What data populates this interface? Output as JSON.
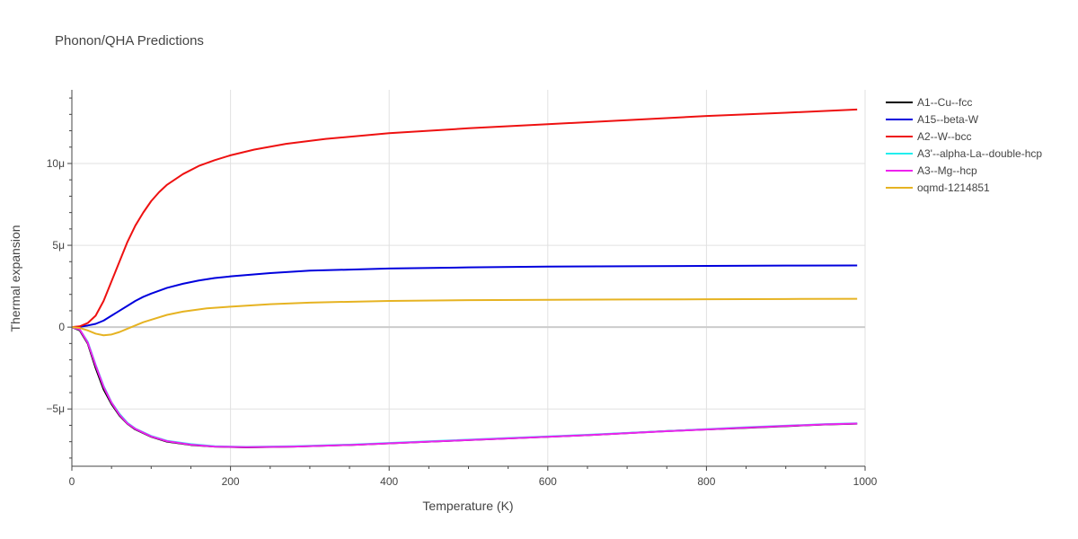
{
  "chart_data": {
    "type": "line",
    "title": "Phonon/QHA Predictions",
    "xlabel": "Temperature (K)",
    "ylabel": "Thermal expansion",
    "xlim": [
      0,
      1000
    ],
    "ylim": [
      -8.5e-06,
      1.45e-05
    ],
    "x_ticks": [
      0,
      200,
      400,
      600,
      800,
      1000
    ],
    "x_tick_labels": [
      "0",
      "200",
      "400",
      "600",
      "800",
      "1000"
    ],
    "y_ticks": [
      -5e-06,
      0,
      5e-06,
      1e-05
    ],
    "y_tick_labels": [
      "−5μ",
      "0",
      "5μ",
      "10μ"
    ],
    "grid": true,
    "legend_position": "right",
    "series": [
      {
        "name": "A1--Cu--fcc",
        "color": "#000000",
        "x": [
          0,
          10,
          20,
          30,
          40,
          50,
          60,
          70,
          80,
          100,
          120,
          150,
          180,
          220,
          280,
          350,
          450,
          550,
          650,
          750,
          850,
          950,
          990
        ],
        "y": [
          0,
          -2e-07,
          -1e-06,
          -2.5e-06,
          -3.8e-06,
          -4.7e-06,
          -5.4e-06,
          -5.9e-06,
          -6.25e-06,
          -6.7e-06,
          -7e-06,
          -7.2e-06,
          -7.3e-06,
          -7.35e-06,
          -7.3e-06,
          -7.2e-06,
          -7e-06,
          -6.8e-06,
          -6.6e-06,
          -6.35e-06,
          -6.15e-06,
          -5.95e-06,
          -5.9e-06
        ]
      },
      {
        "name": "A15--beta-W",
        "color": "#0000dd",
        "x": [
          0,
          10,
          20,
          30,
          40,
          50,
          60,
          70,
          80,
          90,
          100,
          120,
          140,
          160,
          180,
          200,
          250,
          300,
          400,
          500,
          600,
          700,
          800,
          900,
          990
        ],
        "y": [
          0,
          2e-08,
          1e-07,
          2e-07,
          4e-07,
          7e-07,
          1e-06,
          1.3e-06,
          1.6e-06,
          1.85e-06,
          2.05e-06,
          2.4e-06,
          2.65e-06,
          2.85e-06,
          3e-06,
          3.1e-06,
          3.3e-06,
          3.45e-06,
          3.58e-06,
          3.65e-06,
          3.7e-06,
          3.72e-06,
          3.74e-06,
          3.76e-06,
          3.77e-06
        ]
      },
      {
        "name": "A2--W--bcc",
        "color": "#ee1111",
        "x": [
          0,
          10,
          20,
          30,
          40,
          50,
          60,
          70,
          80,
          90,
          100,
          110,
          120,
          140,
          160,
          180,
          200,
          230,
          270,
          320,
          400,
          500,
          600,
          700,
          800,
          900,
          990
        ],
        "y": [
          0,
          5e-08,
          2.5e-07,
          7e-07,
          1.6e-06,
          2.8e-06,
          4e-06,
          5.2e-06,
          6.2e-06,
          7e-06,
          7.7e-06,
          8.25e-06,
          8.7e-06,
          9.35e-06,
          9.85e-06,
          1.02e-05,
          1.05e-05,
          1.085e-05,
          1.12e-05,
          1.15e-05,
          1.185e-05,
          1.215e-05,
          1.24e-05,
          1.265e-05,
          1.29e-05,
          1.31e-05,
          1.33e-05
        ]
      },
      {
        "name": "A3'--alpha-La--double-hcp",
        "color": "#22eeee",
        "x": [
          0,
          10,
          20,
          30,
          40,
          50,
          60,
          70,
          80,
          100,
          120,
          150,
          180,
          220,
          280,
          350,
          450,
          550,
          650,
          750,
          850,
          950,
          990
        ],
        "y": [
          0,
          -1.5e-07,
          -9e-07,
          -2.3e-06,
          -3.6e-06,
          -4.6e-06,
          -5.3e-06,
          -5.85e-06,
          -6.2e-06,
          -6.65e-06,
          -6.95e-06,
          -7.15e-06,
          -7.28e-06,
          -7.32e-06,
          -7.28e-06,
          -7.18e-06,
          -6.98e-06,
          -6.78e-06,
          -6.58e-06,
          -6.35e-06,
          -6.12e-06,
          -5.93e-06,
          -5.88e-06
        ]
      },
      {
        "name": "A3--Mg--hcp",
        "color": "#ee22ee",
        "x": [
          0,
          10,
          20,
          30,
          40,
          50,
          60,
          70,
          80,
          100,
          120,
          150,
          180,
          220,
          280,
          350,
          450,
          550,
          650,
          750,
          850,
          950,
          990
        ],
        "y": [
          0,
          -1.5e-07,
          -9.5e-07,
          -2.35e-06,
          -3.65e-06,
          -4.62e-06,
          -5.35e-06,
          -5.88e-06,
          -6.22e-06,
          -6.68e-06,
          -6.97e-06,
          -7.18e-06,
          -7.3e-06,
          -7.33e-06,
          -7.3e-06,
          -7.2e-06,
          -7e-06,
          -6.8e-06,
          -6.6e-06,
          -6.36e-06,
          -6.14e-06,
          -5.94e-06,
          -5.89e-06
        ]
      },
      {
        "name": "oqmd-1214851",
        "color": "#e6b322",
        "x": [
          0,
          10,
          20,
          30,
          40,
          50,
          60,
          70,
          80,
          90,
          100,
          120,
          140,
          170,
          200,
          250,
          300,
          400,
          500,
          600,
          700,
          800,
          900,
          990
        ],
        "y": [
          0,
          -5e-08,
          -2e-07,
          -4e-07,
          -5e-07,
          -4.5e-07,
          -3e-07,
          -1e-07,
          1e-07,
          3e-07,
          4.5e-07,
          7.5e-07,
          9.5e-07,
          1.15e-06,
          1.25e-06,
          1.4e-06,
          1.5e-06,
          1.6e-06,
          1.65e-06,
          1.67e-06,
          1.69e-06,
          1.7e-06,
          1.72e-06,
          1.73e-06
        ]
      }
    ]
  }
}
